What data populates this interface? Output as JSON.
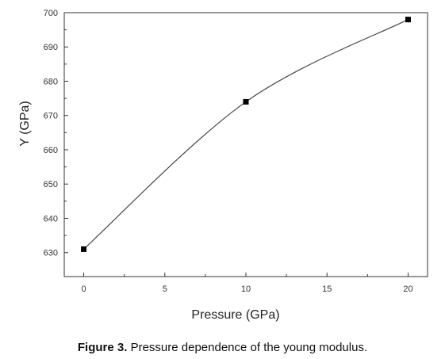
{
  "chart_data": {
    "type": "line",
    "title": "",
    "xlabel": "Pressure (GPa)",
    "ylabel": "Y (GPa)",
    "xlim": [
      -1.2,
      21.2
    ],
    "ylim": [
      623,
      700
    ],
    "xticks": [
      0,
      5,
      10,
      15,
      20
    ],
    "yticks": [
      630,
      640,
      650,
      660,
      670,
      680,
      690,
      700
    ],
    "grid": false,
    "legend": "none",
    "series": [
      {
        "x": [
          0,
          10,
          20
        ],
        "y": [
          631,
          674,
          698
        ],
        "marker": "square",
        "curve": "smooth"
      }
    ],
    "colors": {
      "line": "#444444",
      "marker": "#000000",
      "axis": "#333333"
    }
  },
  "caption": {
    "label": "Figure 3.",
    "text": " Pressure dependence of the young modulus."
  }
}
